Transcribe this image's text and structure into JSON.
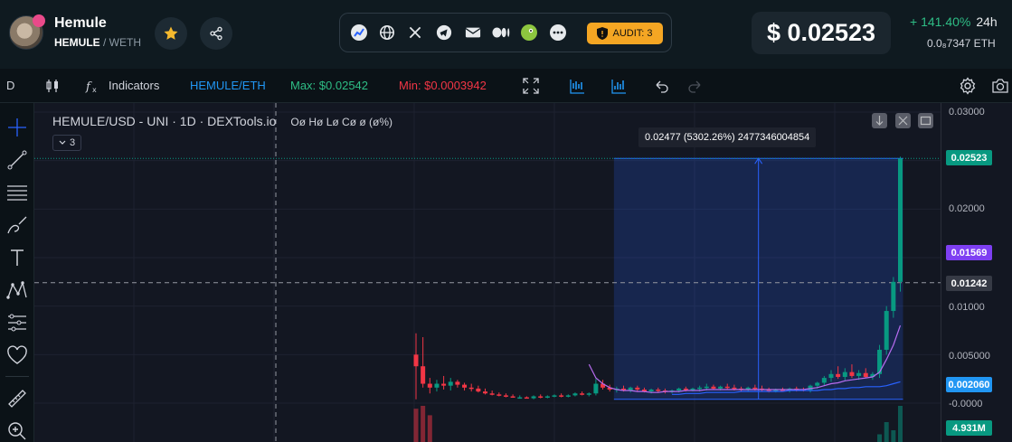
{
  "header": {
    "token_name": "Hemule",
    "pair_base": "HEMULE",
    "pair_quote": "/ WETH",
    "price": "$ 0.02523",
    "change": "+ 141.40%",
    "change_period": "24h",
    "eth_price": "0.0₈7347 ETH",
    "audit_label": "AUDIT: 3",
    "icons": [
      "star-icon",
      "share-icon",
      "dextools-icon",
      "globe-icon",
      "x-icon",
      "telegram-icon",
      "email-icon",
      "medium-icon",
      "coingecko-icon",
      "more-icon",
      "shield-icon"
    ],
    "accent_colors": {
      "positive": "#2ebd85",
      "negative": "#f23645",
      "audit": "#f5a623",
      "star": "#f5b92e"
    }
  },
  "toolbar": {
    "timeframe": "D",
    "indicators_label": "Indicators",
    "pair_label": "HEMULE/ETH",
    "max_label": "Max: $0.02542",
    "min_label": "Min: $0.0003942",
    "icons": [
      "candle-type-icon",
      "fx-icon",
      "fullscreen-icon",
      "bar-chart-icon",
      "bar-chart-alt-icon",
      "undo-icon",
      "redo-icon",
      "settings-icon",
      "camera-icon"
    ]
  },
  "left_tools": [
    "crosshair-icon",
    "trend-line-icon",
    "fib-lines-icon",
    "brush-icon",
    "text-icon",
    "pattern-icon",
    "prediction-icon",
    "heart-icon",
    "ruler-icon",
    "zoom-icon"
  ],
  "chart": {
    "legend_title": "HEMULE/USD - UNI · 1D · DEXTools.io",
    "ohlc": "Oø Hø Lø Cø ø (ø%)",
    "indicator_count": "3",
    "measure_label": "0.02477 (5302.26%) 2477346004854"
  },
  "axis": {
    "ticks": [
      "0.03000",
      "0.02000",
      "0.01000",
      "0.005000",
      "-0.0000"
    ],
    "tag_last": "0.02523",
    "tag_purple": "0.01569",
    "tag_cross": "0.01242",
    "tag_blue": "0.002060",
    "tag_volume": "4.931M"
  },
  "chart_data": {
    "type": "candlestick",
    "title": "HEMULE/USD - UNI · 1D · DEXTools.io",
    "ylim": [
      0,
      0.03
    ],
    "ticks": [
      0.03,
      0.02,
      0.01,
      0.005,
      0
    ],
    "last_price": 0.02523,
    "max": 0.02542,
    "min": 0.0003942,
    "measure": {
      "from": 0.0004,
      "to": 0.02523,
      "change": 0.02477,
      "percent": 5302.26
    },
    "candles": [
      [
        0.005,
        0.0072,
        0.0004,
        0.0038
      ],
      [
        0.0038,
        0.0068,
        0.0016,
        0.002
      ],
      [
        0.002,
        0.0026,
        0.001,
        0.0016
      ],
      [
        0.0016,
        0.0024,
        0.0012,
        0.002
      ],
      [
        0.002,
        0.0028,
        0.0014,
        0.0018
      ],
      [
        0.0018,
        0.0026,
        0.0013,
        0.0022
      ],
      [
        0.0022,
        0.0024,
        0.0016,
        0.0019
      ],
      [
        0.0019,
        0.0021,
        0.0013,
        0.0016
      ],
      [
        0.0016,
        0.002,
        0.0012,
        0.0015
      ],
      [
        0.0015,
        0.0018,
        0.0011,
        0.0012
      ],
      [
        0.0012,
        0.0015,
        0.0009,
        0.001
      ],
      [
        0.001,
        0.0013,
        0.0008,
        0.0009
      ],
      [
        0.0009,
        0.0011,
        0.0007,
        0.0008
      ],
      [
        0.0008,
        0.001,
        0.0006,
        0.0007
      ],
      [
        0.0007,
        0.0009,
        0.0006,
        0.0006
      ],
      [
        0.0006,
        0.0008,
        0.0005,
        0.0006
      ],
      [
        0.0006,
        0.0007,
        0.0005,
        0.0005
      ],
      [
        0.0005,
        0.0008,
        0.0004,
        0.0007
      ],
      [
        0.0007,
        0.0009,
        0.0005,
        0.0006
      ],
      [
        0.0006,
        0.0008,
        0.0005,
        0.0007
      ],
      [
        0.0007,
        0.0009,
        0.0006,
        0.0008
      ],
      [
        0.0008,
        0.001,
        0.0006,
        0.0007
      ],
      [
        0.0007,
        0.0009,
        0.0006,
        0.0008
      ],
      [
        0.0008,
        0.0011,
        0.0007,
        0.001
      ],
      [
        0.001,
        0.0012,
        0.0008,
        0.0009
      ],
      [
        0.0009,
        0.0011,
        0.0007,
        0.001
      ],
      [
        0.001,
        0.0025,
        0.0008,
        0.002
      ],
      [
        0.002,
        0.0024,
        0.0014,
        0.0016
      ],
      [
        0.0016,
        0.0019,
        0.0012,
        0.0014
      ],
      [
        0.0014,
        0.0017,
        0.0011,
        0.0015
      ],
      [
        0.0015,
        0.0018,
        0.0012,
        0.0013
      ],
      [
        0.0013,
        0.0017,
        0.0011,
        0.0016
      ],
      [
        0.0016,
        0.0018,
        0.0012,
        0.0014
      ],
      [
        0.0014,
        0.0016,
        0.0011,
        0.0012
      ],
      [
        0.0012,
        0.0015,
        0.001,
        0.0014
      ],
      [
        0.0014,
        0.0016,
        0.0011,
        0.0013
      ],
      [
        0.0013,
        0.0015,
        0.001,
        0.0012
      ],
      [
        0.0012,
        0.0014,
        0.001,
        0.0013
      ],
      [
        0.0013,
        0.0016,
        0.0011,
        0.0015
      ],
      [
        0.0015,
        0.0017,
        0.0012,
        0.0014
      ],
      [
        0.0014,
        0.0016,
        0.0012,
        0.0015
      ],
      [
        0.0015,
        0.0018,
        0.0012,
        0.0016
      ],
      [
        0.0016,
        0.002,
        0.0013,
        0.0017
      ],
      [
        0.0017,
        0.0019,
        0.0014,
        0.0015
      ],
      [
        0.0015,
        0.0018,
        0.0013,
        0.0017
      ],
      [
        0.0017,
        0.002,
        0.0014,
        0.0016
      ],
      [
        0.0016,
        0.0019,
        0.0013,
        0.0015
      ],
      [
        0.0015,
        0.0017,
        0.0012,
        0.0014
      ],
      [
        0.0014,
        0.0017,
        0.0012,
        0.0016
      ],
      [
        0.0016,
        0.0019,
        0.0013,
        0.0015
      ],
      [
        0.0015,
        0.0018,
        0.0012,
        0.0014
      ],
      [
        0.0014,
        0.0016,
        0.0011,
        0.0013
      ],
      [
        0.0013,
        0.0015,
        0.0011,
        0.0014
      ],
      [
        0.0014,
        0.0016,
        0.0012,
        0.0013
      ],
      [
        0.0013,
        0.0016,
        0.0011,
        0.0015
      ],
      [
        0.0015,
        0.0017,
        0.0012,
        0.0014
      ],
      [
        0.0014,
        0.0016,
        0.0012,
        0.0013
      ],
      [
        0.0013,
        0.0019,
        0.0011,
        0.0018
      ],
      [
        0.0018,
        0.0022,
        0.0015,
        0.0021
      ],
      [
        0.0021,
        0.0028,
        0.0018,
        0.0026
      ],
      [
        0.0026,
        0.0034,
        0.0022,
        0.003
      ],
      [
        0.003,
        0.0038,
        0.0025,
        0.0027
      ],
      [
        0.0027,
        0.0036,
        0.0023,
        0.0032
      ],
      [
        0.0032,
        0.004,
        0.0026,
        0.0028
      ],
      [
        0.0028,
        0.0034,
        0.0024,
        0.0031
      ],
      [
        0.0031,
        0.0036,
        0.0026,
        0.0027
      ],
      [
        0.0027,
        0.0032,
        0.0024,
        0.003
      ],
      [
        0.003,
        0.006,
        0.0026,
        0.0055
      ],
      [
        0.0055,
        0.01,
        0.005,
        0.0095
      ],
      [
        0.0095,
        0.013,
        0.0088,
        0.0125
      ],
      [
        0.0125,
        0.0254,
        0.0115,
        0.0252
      ]
    ],
    "ma_series": [
      {
        "name": "",
        "color": "#b86cf0",
        "values": [
          null,
          null,
          null,
          null,
          null,
          null,
          null,
          null,
          null,
          null,
          null,
          null,
          null,
          null,
          null,
          null,
          null,
          null,
          null,
          null,
          null,
          null,
          null,
          null,
          null,
          0.004,
          0.0026,
          0.002,
          0.0016,
          0.0014,
          0.0013,
          0.0013,
          0.0012,
          0.0012,
          0.0011,
          0.0011,
          0.0012,
          0.0012,
          0.0012,
          0.0013,
          0.0013,
          0.0013,
          0.0014,
          0.0014,
          0.0014,
          0.0014,
          0.0014,
          0.0014,
          0.0014,
          0.0014,
          0.0014,
          0.0014,
          0.0014,
          0.0014,
          0.0014,
          0.0014,
          0.0014,
          0.0015,
          0.0016,
          0.0018,
          0.002,
          0.0021,
          0.0023,
          0.0024,
          0.0025,
          0.0026,
          0.0027,
          0.0032,
          0.0045,
          0.006,
          0.008
        ]
      },
      {
        "name": "",
        "color": "#2962ff",
        "values": [
          null,
          null,
          null,
          null,
          null,
          null,
          null,
          null,
          null,
          null,
          null,
          null,
          null,
          null,
          null,
          null,
          null,
          null,
          null,
          null,
          null,
          null,
          null,
          null,
          null,
          null,
          null,
          null,
          null,
          null,
          null,
          null,
          null,
          null,
          null,
          null,
          null,
          0.0009,
          0.0009,
          0.001,
          0.001,
          0.001,
          0.0011,
          0.0011,
          0.0011,
          0.0011,
          0.0011,
          0.0012,
          0.0012,
          0.0012,
          0.0012,
          0.0012,
          0.0012,
          0.0012,
          0.0013,
          0.0013,
          0.0013,
          0.0013,
          0.0013,
          0.0014,
          0.0014,
          0.0015,
          0.0015,
          0.0016,
          0.0016,
          0.0017,
          0.0017,
          0.0017,
          0.0018,
          0.002,
          0.0022
        ]
      }
    ],
    "volume_last": "4.931M"
  }
}
